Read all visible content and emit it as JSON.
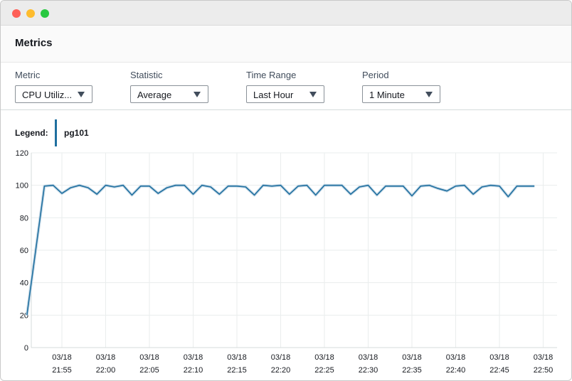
{
  "header": {
    "title": "Metrics"
  },
  "controls": [
    {
      "label": "Metric",
      "value": "CPU Utiliz..."
    },
    {
      "label": "Statistic",
      "value": "Average"
    },
    {
      "label": "Time Range",
      "value": "Last Hour"
    },
    {
      "label": "Period",
      "value": "1 Minute"
    }
  ],
  "legend": {
    "label": "Legend:",
    "series": "pg101",
    "color": "#1f6f9f"
  },
  "chart_data": {
    "type": "line",
    "title": "",
    "xlabel": "",
    "ylabel": "",
    "ylim": [
      0,
      120
    ],
    "yticks": [
      0,
      20,
      40,
      60,
      80,
      100,
      120
    ],
    "grid": true,
    "xtick_labels": [
      [
        "03/18",
        "21:55"
      ],
      [
        "03/18",
        "22:00"
      ],
      [
        "03/18",
        "22:05"
      ],
      [
        "03/18",
        "22:10"
      ],
      [
        "03/18",
        "22:15"
      ],
      [
        "03/18",
        "22:20"
      ],
      [
        "03/18",
        "22:25"
      ],
      [
        "03/18",
        "22:30"
      ],
      [
        "03/18",
        "22:35"
      ],
      [
        "03/18",
        "22:40"
      ],
      [
        "03/18",
        "22:45"
      ],
      [
        "03/18",
        "22:50"
      ]
    ],
    "x_range": [
      "21:50",
      "22:50"
    ],
    "series": [
      {
        "name": "pg101",
        "color": "#1f6f9f",
        "x": [
          "21:51",
          "21:53",
          "21:54",
          "21:55",
          "21:56",
          "21:57",
          "21:58",
          "21:59",
          "22:00",
          "22:01",
          "22:02",
          "22:03",
          "22:04",
          "22:05",
          "22:06",
          "22:07",
          "22:08",
          "22:09",
          "22:10",
          "22:11",
          "22:12",
          "22:13",
          "22:14",
          "22:15",
          "22:16",
          "22:17",
          "22:18",
          "22:19",
          "22:20",
          "22:21",
          "22:22",
          "22:23",
          "22:24",
          "22:25",
          "22:26",
          "22:27",
          "22:28",
          "22:29",
          "22:30",
          "22:31",
          "22:32",
          "22:33",
          "22:34",
          "22:35",
          "22:36",
          "22:37",
          "22:38",
          "22:39",
          "22:40",
          "22:41",
          "22:42",
          "22:43",
          "22:44",
          "22:45",
          "22:46",
          "22:47",
          "22:48",
          "22:49"
        ],
        "values": [
          20,
          99.5,
          100,
          95,
          98.5,
          100,
          98.5,
          94.5,
          100,
          99,
          100,
          94,
          99.5,
          99.5,
          95,
          98.5,
          100,
          100,
          94.5,
          100,
          99,
          94.5,
          99.5,
          99.5,
          99,
          94,
          100,
          99.5,
          100,
          94.5,
          99.5,
          100,
          94,
          100,
          100,
          100,
          94.5,
          99,
          100,
          94,
          99.5,
          99.5,
          99.5,
          93.5,
          99.5,
          100,
          98,
          96.5,
          99.5,
          100,
          94.5,
          99,
          100,
          99.5,
          93,
          99.5,
          99.5,
          99.5
        ]
      }
    ]
  }
}
